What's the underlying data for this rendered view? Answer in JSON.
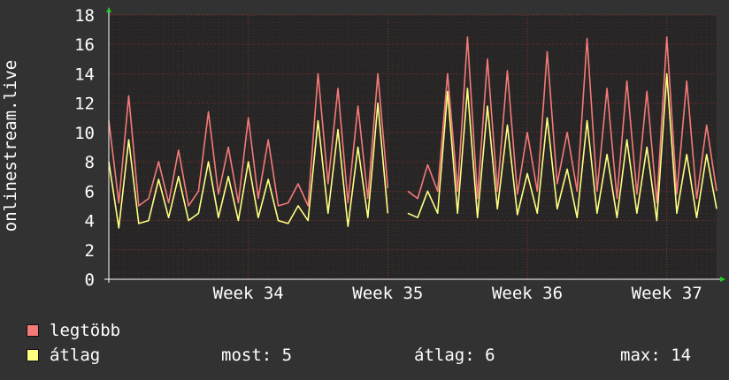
{
  "chart_data": {
    "type": "line",
    "ylabel": "onlinestream.live",
    "ylim": [
      0,
      18
    ],
    "y_ticks": [
      0,
      2,
      4,
      6,
      8,
      10,
      12,
      14,
      16,
      18
    ],
    "x_ticks": [
      {
        "label": "Week 34",
        "day": 7
      },
      {
        "label": "Week 35",
        "day": 14
      },
      {
        "label": "Week 36",
        "day": 21
      },
      {
        "label": "Week 37",
        "day": 28
      }
    ],
    "x_range_days": [
      0,
      30.5
    ],
    "grid": true,
    "series": [
      {
        "name": "legtöbb",
        "color": "#f47a7a",
        "days": [
          0,
          0.5,
          1,
          1.5,
          2,
          2.5,
          3,
          3.5,
          4,
          4.5,
          5,
          5.5,
          6,
          6.5,
          7,
          7.5,
          8,
          8.5,
          9,
          9.5,
          10,
          10.5,
          11,
          11.5,
          12,
          12.5,
          13,
          13.5,
          14,
          14.5,
          15,
          15.5,
          16,
          16.5,
          17,
          17.5,
          18,
          18.5,
          19,
          19.5,
          20,
          20.5,
          21,
          21.5,
          22,
          22.5,
          23,
          23.5,
          24,
          24.5,
          25,
          25.5,
          26,
          26.5,
          27,
          27.5,
          28,
          28.5,
          29,
          29.5,
          30,
          30.5
        ],
        "values": [
          10.8,
          5.2,
          12.5,
          5.0,
          5.5,
          8.0,
          5.2,
          8.8,
          5.0,
          6.0,
          11.4,
          5.8,
          9.0,
          5.2,
          11.0,
          5.5,
          9.5,
          5.0,
          5.2,
          6.5,
          5.0,
          14.0,
          6.5,
          13.0,
          5.2,
          11.8,
          5.5,
          14.0,
          6.2,
          null,
          6.0,
          5.5,
          7.8,
          6.0,
          14.0,
          6.0,
          16.5,
          5.5,
          15.0,
          6.0,
          14.2,
          5.8,
          10.0,
          6.0,
          15.5,
          6.5,
          10.0,
          6.0,
          16.4,
          6.0,
          13.0,
          5.5,
          13.5,
          5.8,
          12.8,
          5.2,
          16.5,
          5.8,
          13.5,
          5.5,
          10.5,
          6.0
        ]
      },
      {
        "name": "átlag",
        "color": "#ffff80",
        "days": [
          0,
          0.5,
          1,
          1.5,
          2,
          2.5,
          3,
          3.5,
          4,
          4.5,
          5,
          5.5,
          6,
          6.5,
          7,
          7.5,
          8,
          8.5,
          9,
          9.5,
          10,
          10.5,
          11,
          11.5,
          12,
          12.5,
          13,
          13.5,
          14,
          14.5,
          15,
          15.5,
          16,
          16.5,
          17,
          17.5,
          18,
          18.5,
          19,
          19.5,
          20,
          20.5,
          21,
          21.5,
          22,
          22.5,
          23,
          23.5,
          24,
          24.5,
          25,
          25.5,
          26,
          26.5,
          27,
          27.5,
          28,
          28.5,
          29,
          29.5,
          30,
          30.5
        ],
        "values": [
          8.0,
          3.5,
          9.5,
          3.8,
          4.0,
          6.8,
          4.2,
          7.0,
          4.0,
          4.5,
          8.0,
          4.2,
          7.0,
          4.0,
          8.0,
          4.2,
          6.8,
          4.0,
          3.8,
          5.0,
          4.0,
          10.8,
          4.5,
          10.2,
          3.6,
          9.0,
          4.2,
          12.0,
          4.5,
          null,
          4.5,
          4.2,
          6.0,
          4.5,
          12.8,
          4.5,
          13.0,
          4.2,
          11.8,
          4.8,
          10.5,
          4.4,
          7.2,
          4.5,
          11.0,
          4.8,
          7.5,
          4.2,
          10.8,
          4.5,
          8.5,
          4.2,
          9.5,
          4.5,
          9.0,
          4.0,
          14.0,
          4.5,
          8.5,
          4.2,
          8.5,
          4.8
        ]
      }
    ],
    "legend": {
      "items": [
        {
          "label": "legtöbb",
          "color": "#f47a7a"
        },
        {
          "label": "átlag",
          "color": "#ffff80"
        }
      ],
      "stats": {
        "most": "most: 5",
        "atlag": "átlag: 6",
        "max": "max: 14"
      }
    }
  }
}
